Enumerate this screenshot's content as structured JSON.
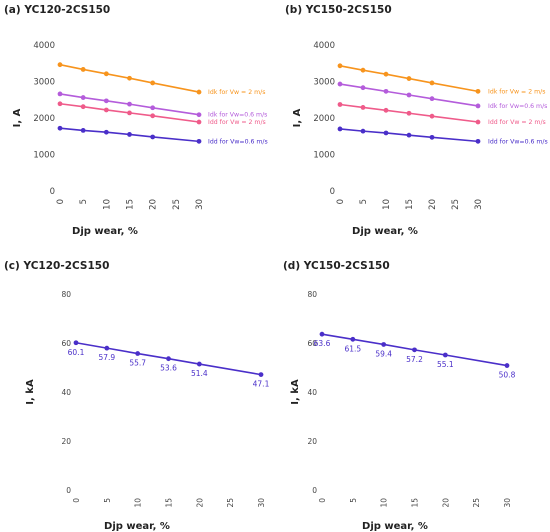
{
  "chart_data": [
    {
      "type": "line",
      "title": "(a) YC120-2CS150",
      "xlabel": "Djp wear, %",
      "ylabel": "I, A",
      "x": [
        0,
        5,
        10,
        15,
        20,
        30
      ],
      "xticks": [
        0,
        5,
        10,
        15,
        20,
        25,
        30
      ],
      "yticks": [
        0,
        1000,
        2000,
        3000,
        4000
      ],
      "xlim": [
        0,
        30
      ],
      "ylim": [
        0,
        4000
      ],
      "grid": false,
      "series": [
        {
          "name": "Idk for Vw = 2 m/s",
          "color": "#f7941d",
          "values": [
            3460,
            3330,
            3210,
            3090,
            2960,
            2710
          ]
        },
        {
          "name": "Idk for Vw=0.6 m/s",
          "color": "#b45cdb",
          "values": [
            2660,
            2560,
            2470,
            2380,
            2280,
            2090
          ]
        },
        {
          "name": "Idd for Vw = 2 m/s",
          "color": "#ef5b8a",
          "values": [
            2390,
            2310,
            2220,
            2140,
            2060,
            1890
          ]
        },
        {
          "name": "Idd for Vw=0.6 m/s",
          "color": "#4a2fc9",
          "values": [
            1720,
            1660,
            1610,
            1550,
            1480,
            1360
          ]
        }
      ]
    },
    {
      "type": "line",
      "title": "(b) YC150-2CS150",
      "xlabel": "Djp wear, %",
      "ylabel": "I, A",
      "x": [
        0,
        5,
        10,
        15,
        20,
        30
      ],
      "xticks": [
        0,
        5,
        10,
        15,
        20,
        25,
        30
      ],
      "yticks": [
        0,
        1000,
        2000,
        3000,
        4000
      ],
      "xlim": [
        0,
        30
      ],
      "ylim": [
        0,
        4000
      ],
      "grid": false,
      "series": [
        {
          "name": "Idk for Vw = 2 m/s",
          "color": "#f7941d",
          "values": [
            3430,
            3310,
            3200,
            3080,
            2960,
            2730
          ]
        },
        {
          "name": "Idk for Vw=0.6 m/s",
          "color": "#b45cdb",
          "values": [
            2930,
            2830,
            2730,
            2630,
            2530,
            2330
          ]
        },
        {
          "name": "Idd for Vw = 2 m/s",
          "color": "#ef5b8a",
          "values": [
            2370,
            2290,
            2210,
            2130,
            2050,
            1890
          ]
        },
        {
          "name": "Idd for Vw=0.6 m/s",
          "color": "#4a2fc9",
          "values": [
            1700,
            1640,
            1590,
            1530,
            1470,
            1360
          ]
        }
      ]
    },
    {
      "type": "line",
      "title": "(c) YC120-2CS150",
      "xlabel": "Djp wear, %",
      "ylabel": "I, kA",
      "x": [
        0,
        5,
        10,
        15,
        20,
        30
      ],
      "xticks": [
        0,
        5,
        10,
        15,
        20,
        25,
        30
      ],
      "yticks": [
        0,
        20,
        40,
        60,
        80
      ],
      "xlim": [
        0,
        30
      ],
      "ylim": [
        0,
        80
      ],
      "grid": false,
      "series": [
        {
          "color": "#4a2fc9",
          "values": [
            60.1,
            57.9,
            55.7,
            53.6,
            51.4,
            47.1
          ],
          "labels": [
            "60.1",
            "57.9",
            "55.7",
            "53.6",
            "51.4",
            "47.1"
          ]
        }
      ]
    },
    {
      "type": "line",
      "title": "(d) YC150-2CS150",
      "xlabel": "Djp wear, %",
      "ylabel": "I, kA",
      "x": [
        0,
        5,
        10,
        15,
        20,
        30
      ],
      "xticks": [
        0,
        5,
        10,
        15,
        20,
        25,
        30
      ],
      "yticks": [
        0,
        20,
        40,
        60,
        80
      ],
      "xlim": [
        0,
        30
      ],
      "ylim": [
        0,
        80
      ],
      "grid": false,
      "series": [
        {
          "color": "#4a2fc9",
          "values": [
            63.6,
            61.5,
            59.4,
            57.2,
            55.1,
            50.8
          ],
          "labels": [
            "63.6",
            "61.5",
            "59.4",
            "57.2",
            "55.1",
            "50.8"
          ]
        }
      ]
    }
  ]
}
